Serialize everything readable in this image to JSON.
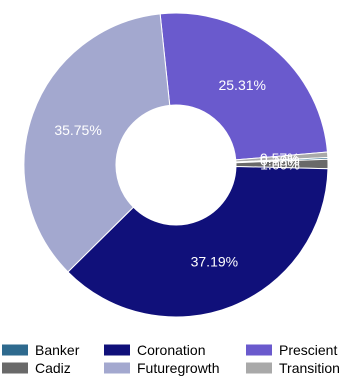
{
  "chart_data": {
    "type": "pie",
    "subtype": "donut",
    "slices": [
      {
        "name": "Prescient",
        "value": 25.31,
        "label": "25.31%",
        "color": "#6a5acd"
      },
      {
        "name": "Transition",
        "value": 0.57,
        "label": "0.57%",
        "color": "#a9a9a9"
      },
      {
        "name": "Banker",
        "value": 0.18,
        "label": "0.18%",
        "color": "#2e6a8e"
      },
      {
        "name": "Cadiz",
        "value": 1.0,
        "label": "1.00%",
        "color": "#696969"
      },
      {
        "name": "Coronation",
        "value": 37.19,
        "label": "37.19%",
        "color": "#10107a"
      },
      {
        "name": "Futuregrowth",
        "value": 35.75,
        "label": "35.75%",
        "color": "#a3a8cf"
      }
    ],
    "legend": {
      "placement": "bottom",
      "entries": [
        {
          "name": "Banker",
          "color": "#2e6a8e"
        },
        {
          "name": "Coronation",
          "color": "#10107a"
        },
        {
          "name": "Prescient",
          "color": "#6a5acd"
        },
        {
          "name": "Cadiz",
          "color": "#696969"
        },
        {
          "name": "Futuregrowth",
          "color": "#a3a8cf"
        },
        {
          "name": "Transition",
          "color": "#a9a9a9"
        }
      ]
    }
  }
}
